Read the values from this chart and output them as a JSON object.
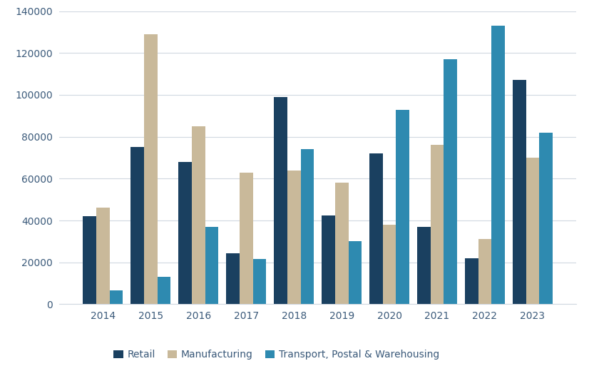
{
  "years": [
    2014,
    2015,
    2016,
    2017,
    2018,
    2019,
    2020,
    2021,
    2022,
    2023
  ],
  "retail": [
    42000,
    75000,
    68000,
    24500,
    99000,
    42500,
    72000,
    37000,
    22000,
    107000
  ],
  "manufacturing": [
    46000,
    129000,
    85000,
    63000,
    64000,
    58000,
    38000,
    76000,
    31000,
    70000
  ],
  "transport": [
    6500,
    13000,
    37000,
    21500,
    74000,
    30000,
    93000,
    117000,
    133000,
    82000
  ],
  "colors": {
    "retail": "#1a4060",
    "manufacturing": "#c9b99a",
    "transport": "#2e8ab0"
  },
  "legend_labels": [
    "Retail",
    "Manufacturing",
    "Transport, Postal & Warehousing"
  ],
  "text_color": "#3b5a7a",
  "ylim": [
    0,
    140000
  ],
  "yticks": [
    0,
    20000,
    40000,
    60000,
    80000,
    100000,
    120000,
    140000
  ],
  "background_color": "#ffffff",
  "grid_color": "#d0d8e0"
}
